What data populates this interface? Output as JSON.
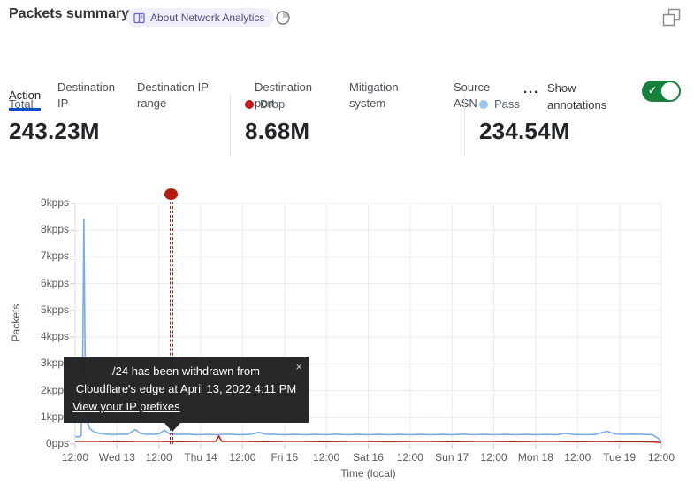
{
  "header": {
    "title": "Packets summary",
    "about_badge_label": "About Network Analytics",
    "about_badge_bg": "#f1effc",
    "about_badge_text_color": "#4b4a7f",
    "icons": [
      "book-icon",
      "clock-icon",
      "restore-window-icon"
    ]
  },
  "tabs": {
    "items": [
      {
        "label": "Action",
        "active": true
      },
      {
        "label": "Destination IP",
        "active": false
      },
      {
        "label": "Destination IP range",
        "active": false
      },
      {
        "label": "Destination port",
        "active": false
      },
      {
        "label": "Mitigation system",
        "active": false
      },
      {
        "label": "Source ASN",
        "active": false
      }
    ],
    "more_label": "···",
    "active_underline_color": "#0051c3",
    "show_annotations_label": "Show annotations",
    "annotations_toggle_on": true,
    "toggle_color": "#17803d"
  },
  "stats": [
    {
      "label": "Total",
      "value": "243.23M",
      "dot_color": null
    },
    {
      "label": "Drop",
      "value": "8.68M",
      "dot_color": "#c21a1a"
    },
    {
      "label": "Pass",
      "value": "234.54M",
      "dot_color": "#9cc5f7"
    }
  ],
  "annotation_tooltip": {
    "line1": "/24 has been withdrawn from",
    "line2": "Cloudflare's edge at April 13, 2022 4:11 PM",
    "link_label": "View your IP prefixes",
    "close_glyph": "×"
  },
  "chart_data": {
    "type": "line",
    "title": "Packets summary",
    "xlabel": "Time (local)",
    "ylabel": "Packets",
    "x_hours_range": [
      0,
      168
    ],
    "x_tick_labels": [
      "12:00",
      "Wed 13",
      "12:00",
      "Thu 14",
      "12:00",
      "Fri 15",
      "12:00",
      "Sat 16",
      "12:00",
      "Sun 17",
      "12:00",
      "Mon 18",
      "12:00",
      "Tue 19",
      "12:00"
    ],
    "ylim_kpps": [
      0,
      9
    ],
    "y_tick_labels": [
      "0pps",
      "1kpps",
      "2kpps",
      "3kpps",
      "4kpps",
      "5kpps",
      "6kpps",
      "7kpps",
      "8kpps",
      "9kpps"
    ],
    "grid": true,
    "legend_position": "top (stat cards)",
    "series": [
      {
        "name": "Pass",
        "color": "#79abf2",
        "unit": "kpps",
        "points": [
          [
            0,
            0.28
          ],
          [
            0.9,
            0.27
          ],
          [
            1.7,
            0.3
          ],
          [
            2.1,
            2.2
          ],
          [
            2.5,
            8.4
          ],
          [
            2.9,
            2.6
          ],
          [
            3.4,
            0.85
          ],
          [
            4.2,
            0.58
          ],
          [
            5.5,
            0.45
          ],
          [
            7,
            0.4
          ],
          [
            9,
            0.37
          ],
          [
            11,
            0.35
          ],
          [
            13,
            0.37
          ],
          [
            15,
            0.36
          ],
          [
            17.3,
            0.55
          ],
          [
            18.4,
            0.42
          ],
          [
            20,
            0.37
          ],
          [
            22,
            0.36
          ],
          [
            24,
            0.38
          ],
          [
            25.6,
            0.52
          ],
          [
            26.8,
            0.4
          ],
          [
            29,
            0.36
          ],
          [
            32,
            0.37
          ],
          [
            35,
            0.35
          ],
          [
            38,
            0.36
          ],
          [
            41,
            0.35
          ],
          [
            44,
            0.37
          ],
          [
            47,
            0.35
          ],
          [
            50,
            0.36
          ],
          [
            52.8,
            0.44
          ],
          [
            54.5,
            0.37
          ],
          [
            57,
            0.36
          ],
          [
            60,
            0.35
          ],
          [
            63,
            0.36
          ],
          [
            66,
            0.35
          ],
          [
            69,
            0.36
          ],
          [
            72,
            0.35
          ],
          [
            75,
            0.37
          ],
          [
            78,
            0.35
          ],
          [
            81,
            0.36
          ],
          [
            84,
            0.35
          ],
          [
            87,
            0.36
          ],
          [
            90,
            0.35
          ],
          [
            93,
            0.36
          ],
          [
            96,
            0.35
          ],
          [
            99,
            0.36
          ],
          [
            102,
            0.35
          ],
          [
            105,
            0.36
          ],
          [
            108,
            0.35
          ],
          [
            111,
            0.37
          ],
          [
            114,
            0.35
          ],
          [
            117,
            0.36
          ],
          [
            120,
            0.35
          ],
          [
            123,
            0.36
          ],
          [
            126,
            0.35
          ],
          [
            129,
            0.36
          ],
          [
            132,
            0.35
          ],
          [
            135,
            0.36
          ],
          [
            138,
            0.35
          ],
          [
            140.5,
            0.4
          ],
          [
            143,
            0.36
          ],
          [
            146,
            0.35
          ],
          [
            149,
            0.36
          ],
          [
            152.5,
            0.48
          ],
          [
            154.5,
            0.38
          ],
          [
            157,
            0.36
          ],
          [
            160,
            0.37
          ],
          [
            163,
            0.36
          ],
          [
            165.5,
            0.35
          ],
          [
            167.3,
            0.2
          ],
          [
            168,
            0.07
          ]
        ]
      },
      {
        "name": "Drop",
        "color": "#b32a1f",
        "unit": "kpps",
        "points": [
          [
            0,
            0.1
          ],
          [
            6,
            0.1
          ],
          [
            12,
            0.09
          ],
          [
            18,
            0.1
          ],
          [
            24,
            0.1
          ],
          [
            30,
            0.09
          ],
          [
            36,
            0.1
          ],
          [
            40.3,
            0.1
          ],
          [
            41.2,
            0.3
          ],
          [
            42,
            0.1
          ],
          [
            48,
            0.1
          ],
          [
            54,
            0.09
          ],
          [
            60,
            0.1
          ],
          [
            66,
            0.1
          ],
          [
            72,
            0.09
          ],
          [
            78,
            0.1
          ],
          [
            84,
            0.1
          ],
          [
            90,
            0.09
          ],
          [
            96,
            0.1
          ],
          [
            102,
            0.1
          ],
          [
            108,
            0.09
          ],
          [
            114,
            0.1
          ],
          [
            120,
            0.1
          ],
          [
            126,
            0.09
          ],
          [
            132,
            0.1
          ],
          [
            138,
            0.1
          ],
          [
            144,
            0.09
          ],
          [
            150,
            0.1
          ],
          [
            156,
            0.09
          ],
          [
            162,
            0.09
          ],
          [
            166,
            0.08
          ],
          [
            168,
            0.05
          ]
        ]
      }
    ],
    "annotation": {
      "hour": 27.5,
      "time_label": "April 13, 2022 4:11 PM",
      "marker_color": "#b41d10",
      "line_style": "double-dashed vertical"
    }
  }
}
